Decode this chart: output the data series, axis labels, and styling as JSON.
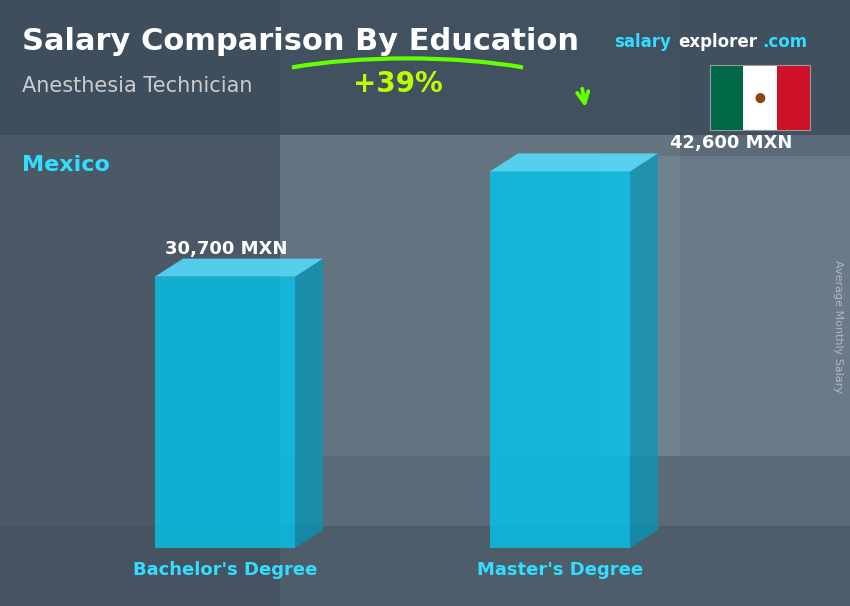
{
  "title": "Salary Comparison By Education",
  "subtitle": "Anesthesia Technician",
  "country": "Mexico",
  "ylabel": "Average Monthly Salary",
  "categories": [
    "Bachelor's Degree",
    "Master's Degree"
  ],
  "values": [
    30700,
    42600
  ],
  "value_labels": [
    "30,700 MXN",
    "42,600 MXN"
  ],
  "pct_change": "+39%",
  "bar_face_color": "#00C8F0",
  "bar_top_color": "#55DDFF",
  "bar_side_color": "#0099BB",
  "bg_dark": "#4a5a68",
  "bg_mid": "#5a6b7a",
  "bg_light": "#6e7f8e",
  "header_bg": "#3d4d5c",
  "title_color": "#ffffff",
  "subtitle_color": "#cccccc",
  "country_color": "#33DDFF",
  "salary_word_color": "#33DDFF",
  "explorer_color": "#ffffff",
  "com_color": "#33DDFF",
  "value_label_color": "#ffffff",
  "xlabel_color": "#33DDFF",
  "pct_color": "#bbff00",
  "arrow_color": "#66ff00",
  "flag_green": "#006847",
  "flag_white": "#ffffff",
  "flag_red": "#ce1126",
  "ylabel_color": "#cccccc"
}
